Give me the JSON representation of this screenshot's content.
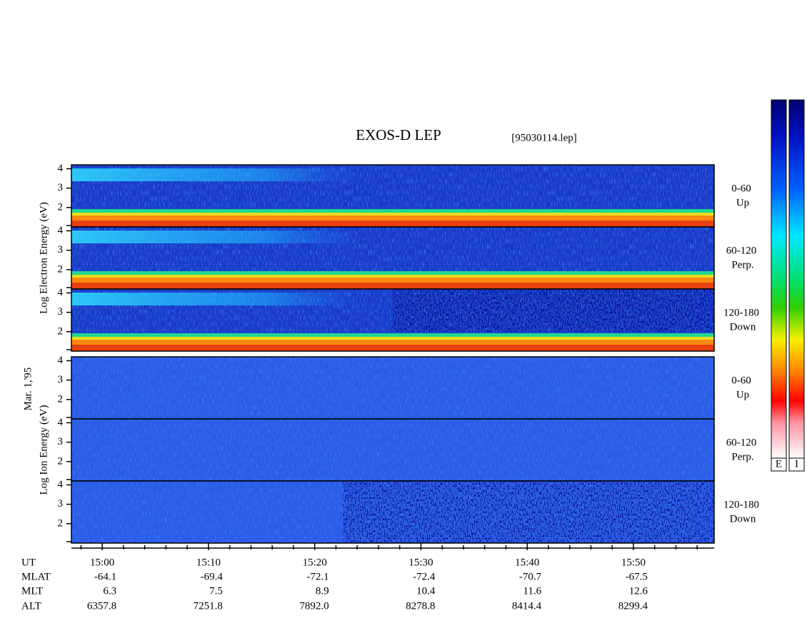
{
  "chart_data": {
    "type": "spectrogram",
    "title": "EXOS-D LEP",
    "subtitle": "[95030114.lep]",
    "date_label": "Mar. 1,'95",
    "groups": [
      {
        "ylabel": "Log Electron Energy (eV)",
        "species": "electron",
        "panels": [
          {
            "angle": "0-60",
            "direction": "Up"
          },
          {
            "angle": "60-120",
            "direction": "Perp."
          },
          {
            "angle": "120-180",
            "direction": "Down"
          }
        ]
      },
      {
        "ylabel": "Log Ion Energy (eV)",
        "species": "ion",
        "panels": [
          {
            "angle": "0-60",
            "direction": "Up"
          },
          {
            "angle": "60-120",
            "direction": "Perp."
          },
          {
            "angle": "120-180",
            "direction": "Down"
          }
        ]
      }
    ],
    "ylim": [
      1,
      4.2
    ],
    "yticks": [
      2,
      3,
      4
    ],
    "xlim": [
      897.1,
      957.6
    ],
    "xticks": [
      {
        "value": 900,
        "label": "15:00"
      },
      {
        "value": 910,
        "label": "15:10"
      },
      {
        "value": 920,
        "label": "15:20"
      },
      {
        "value": 930,
        "label": "15:30"
      },
      {
        "value": 940,
        "label": "15:40"
      },
      {
        "value": 950,
        "label": "15:50"
      }
    ],
    "xminorticks": [
      898,
      902,
      904,
      906,
      908,
      912,
      914,
      916,
      918,
      922,
      924,
      926,
      928,
      932,
      934,
      936,
      938,
      942,
      944,
      946,
      948,
      952,
      954,
      956
    ],
    "ephemeris": {
      "time_label": "UT",
      "rows": [
        {
          "name": "MLAT",
          "values": [
            "-64.1",
            "-69.4",
            "-72.1",
            "-72.4",
            "-70.7",
            "-67.5"
          ]
        },
        {
          "name": "MLT",
          "values": [
            "6.3",
            "7.5",
            "8.9",
            "10.4",
            "11.6",
            "12.6"
          ]
        },
        {
          "name": "ALT",
          "values": [
            "6357.8",
            "7251.8",
            "7892.0",
            "8278.8",
            "8414.4",
            "8299.4"
          ]
        }
      ]
    },
    "colorbar_labels": [
      "E",
      "I"
    ]
  }
}
